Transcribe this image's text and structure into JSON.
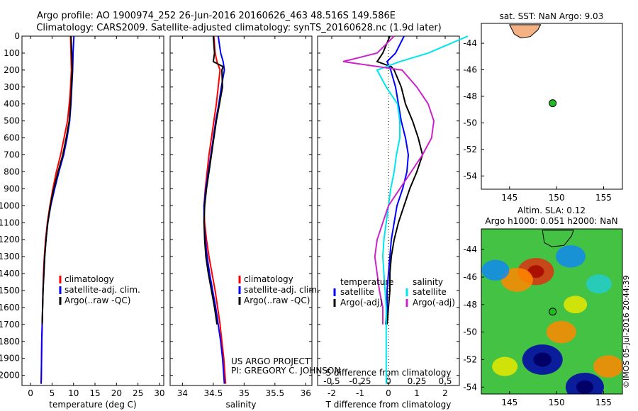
{
  "figure": {
    "title_line1": "Argo profile: AO 1900974_252 26-Jun-2016 20160626_463 48.516S 149.586E",
    "title_line2": "Climatology: CARS2009. Satellite-adjusted climatology: synTS_20160628.nc (1.9d later)",
    "stamp": "©IMOS 05-Jul-2016 20:44:39",
    "project_line1": "US ARGO PROJECT",
    "project_line2": "PI: GREGORY C. JOHNSON"
  },
  "colors": {
    "climatology": "#ff0000",
    "satellite": "#0000ff",
    "argo": "#000000",
    "sal_satellite": "#00e5ee",
    "sal_argo": "#cc22cc",
    "land": "#f4b183",
    "float_marker": "#22bb22"
  },
  "chart_data": [
    {
      "type": "line",
      "xlabel": "temperature (deg C)",
      "ylabel": "",
      "xlim": [
        -2,
        31
      ],
      "ylim": [
        2060,
        0
      ],
      "xticks": [
        "0",
        "5",
        "10",
        "15",
        "20",
        "25",
        "30"
      ],
      "yticks": [
        "0",
        "100",
        "200",
        "300",
        "400",
        "500",
        "600",
        "700",
        "800",
        "900",
        "1000",
        "1100",
        "1200",
        "1300",
        "1400",
        "1500",
        "1600",
        "1700",
        "1800",
        "1900",
        "2000"
      ],
      "legend": [
        "climatology",
        "satellite-adj. clim.",
        "Argo(..raw -QC)"
      ],
      "legend_placement": "lower-center",
      "series": [
        {
          "name": "climatology",
          "color_key": "climatology",
          "depth": [
            0,
            100,
            200,
            300,
            400,
            500,
            600,
            700,
            800,
            900,
            1000,
            1100,
            1200,
            1300,
            1400,
            1500,
            1600,
            1700,
            1800,
            1900,
            2000,
            2050
          ],
          "values": [
            9.3,
            9.4,
            9.5,
            9.3,
            9.0,
            8.6,
            7.8,
            7.0,
            6.0,
            5.2,
            4.5,
            3.9,
            3.5,
            3.2,
            3.0,
            2.9,
            2.8,
            2.7,
            2.6,
            2.55,
            2.5,
            2.45
          ]
        },
        {
          "name": "satellite-adj. clim.",
          "color_key": "satellite",
          "depth": [
            0,
            100,
            200,
            300,
            400,
            500,
            600,
            700,
            800,
            900,
            1000,
            1100,
            1200,
            1300,
            1400,
            1500,
            1600,
            1700,
            1800,
            1900,
            2000,
            2050
          ],
          "values": [
            10.1,
            9.9,
            9.8,
            9.6,
            9.4,
            9.1,
            8.5,
            7.7,
            6.6,
            5.6,
            4.7,
            4.0,
            3.6,
            3.3,
            3.1,
            2.9,
            2.8,
            2.7,
            2.6,
            2.55,
            2.5,
            2.45
          ]
        },
        {
          "name": "Argo(..raw -QC)",
          "color_key": "argo",
          "depth": [
            0,
            100,
            200,
            300,
            400,
            500,
            600,
            700,
            800,
            900,
            1000,
            1100,
            1200,
            1300,
            1400,
            1500,
            1600,
            1700
          ],
          "values": [
            9.4,
            9.6,
            9.7,
            9.5,
            9.3,
            9.0,
            8.3,
            7.5,
            6.4,
            5.4,
            4.6,
            4.0,
            3.6,
            3.3,
            3.1,
            2.9,
            2.8,
            2.7
          ]
        }
      ]
    },
    {
      "type": "line",
      "xlabel": "salinity",
      "xlim": [
        33.8,
        36.1
      ],
      "ylim": [
        2060,
        0
      ],
      "xticks": [
        "34",
        "34.5",
        "35",
        "35.5",
        "36"
      ],
      "legend": [
        "climatology",
        "satellite-adj. clim.",
        "Argo(..raw -QC)"
      ],
      "legend_placement": "lower-center",
      "series": [
        {
          "name": "climatology",
          "color_key": "climatology",
          "depth": [
            0,
            100,
            150,
            200,
            300,
            400,
            500,
            600,
            700,
            800,
            900,
            1000,
            1100,
            1200,
            1300,
            1400,
            1500,
            1600,
            1700,
            1800,
            1900,
            2000,
            2050
          ],
          "values": [
            34.51,
            34.53,
            34.56,
            34.61,
            34.58,
            34.55,
            34.51,
            34.47,
            34.43,
            34.4,
            34.37,
            34.35,
            34.36,
            34.39,
            34.43,
            34.48,
            34.53,
            34.57,
            34.61,
            34.64,
            34.67,
            34.69,
            34.7
          ]
        },
        {
          "name": "satellite-adj. clim.",
          "color_key": "satellite",
          "depth": [
            0,
            100,
            150,
            200,
            300,
            400,
            500,
            600,
            700,
            800,
            900,
            1000,
            1100,
            1200,
            1300,
            1400,
            1500,
            1600,
            1700,
            1800,
            1900,
            2000,
            2050
          ],
          "values": [
            34.58,
            34.62,
            34.66,
            34.68,
            34.63,
            34.59,
            34.54,
            34.5,
            34.46,
            34.42,
            34.38,
            34.35,
            34.35,
            34.37,
            34.4,
            34.44,
            34.49,
            34.54,
            34.58,
            34.62,
            34.65,
            34.67,
            34.68
          ]
        },
        {
          "name": "Argo(..raw -QC)",
          "color_key": "argo",
          "depth": [
            0,
            100,
            150,
            180,
            200,
            300,
            400,
            500,
            600,
            700,
            800,
            900,
            1000,
            1100,
            1200,
            1300,
            1400,
            1500,
            1600,
            1700
          ],
          "values": [
            34.5,
            34.52,
            34.5,
            34.66,
            34.64,
            34.65,
            34.6,
            34.55,
            34.51,
            34.47,
            34.43,
            34.39,
            34.36,
            34.35,
            34.36,
            34.38,
            34.42,
            34.47,
            34.52,
            34.56
          ]
        }
      ]
    },
    {
      "type": "line",
      "xlabel": "T difference from climatology",
      "top_xlabel": "S difference from climatology",
      "xlim": [
        -2.5,
        2.5
      ],
      "ylim": [
        2060,
        0
      ],
      "xticks": [
        "-2",
        "-1",
        "0",
        "1",
        "2"
      ],
      "top_xticks": [
        "-0.5",
        "-0.25",
        "0",
        "0.25",
        "0.5"
      ],
      "legend_titles": [
        "temperature",
        "salinity"
      ],
      "legend": [
        "satellite",
        "Argo(-adj)",
        "satellite",
        "Argo(-adj)"
      ],
      "legend_placement": "lower-center",
      "series": [
        {
          "name": "satellite",
          "group": "temperature",
          "color_key": "satellite",
          "depth": [
            0,
            100,
            150,
            200,
            300,
            400,
            500,
            600,
            700,
            800,
            900,
            1000,
            1100,
            1200,
            1300,
            1400,
            1500,
            1600,
            1700
          ],
          "values": [
            0.55,
            0.25,
            -0.05,
            0.08,
            0.25,
            0.35,
            0.45,
            0.6,
            0.7,
            0.65,
            0.5,
            0.3,
            0.2,
            0.1,
            0.05,
            0.0,
            -0.05,
            -0.05,
            -0.1
          ]
        },
        {
          "name": "Argo(-adj)",
          "group": "temperature",
          "color_key": "argo",
          "depth": [
            0,
            100,
            150,
            180,
            200,
            300,
            400,
            500,
            600,
            700,
            800,
            900,
            1000,
            1100,
            1200,
            1300,
            1400,
            1500,
            1600,
            1700
          ],
          "values": [
            0.05,
            -0.2,
            -0.4,
            0.1,
            0.2,
            0.45,
            0.6,
            0.85,
            1.05,
            1.2,
            1.0,
            0.75,
            0.55,
            0.35,
            0.2,
            0.1,
            0.05,
            0.05,
            0.0,
            -0.05
          ]
        },
        {
          "name": "satellite",
          "group": "salinity",
          "color_key": "sal_satellite",
          "depth": [
            0,
            100,
            150,
            200,
            300,
            400,
            500,
            600,
            700,
            800,
            900,
            1000,
            1100,
            1200,
            1300,
            1400,
            1500,
            1600,
            1700,
            1800,
            1900,
            2000,
            2050
          ],
          "values": [
            0.7,
            0.35,
            0.1,
            -0.1,
            -0.02,
            0.08,
            0.1,
            0.1,
            0.07,
            0.05,
            0.02,
            0.0,
            -0.02,
            -0.04,
            -0.05,
            -0.04,
            -0.03,
            -0.02,
            -0.02,
            -0.02,
            -0.02,
            -0.02,
            -0.02
          ]
        },
        {
          "name": "Argo(-adj)",
          "group": "salinity",
          "color_key": "sal_argo",
          "depth": [
            0,
            100,
            150,
            200,
            300,
            400,
            500,
            600,
            700,
            800,
            900,
            1000,
            1100,
            1200,
            1300,
            1400,
            1500,
            1600,
            1700
          ],
          "values": [
            0.05,
            -0.1,
            -0.4,
            0.12,
            0.25,
            0.35,
            0.4,
            0.38,
            0.3,
            0.2,
            0.1,
            0.0,
            -0.05,
            -0.1,
            -0.12,
            -0.1,
            -0.08,
            -0.05,
            -0.05
          ]
        }
      ]
    },
    {
      "type": "scatter",
      "title": "sat. SST: NaN Argo: 9.03",
      "xlim": [
        142,
        157
      ],
      "ylim": [
        -55,
        -42.5
      ],
      "xticks": [
        "145",
        "150",
        "155"
      ],
      "yticks": [
        "-44",
        "-46",
        "-48",
        "-50",
        "-52",
        "-54"
      ],
      "points": [
        {
          "lon": 149.586,
          "lat": -48.516
        }
      ],
      "land": [
        [
          145.0,
          -42.6
        ],
        [
          145.5,
          -43.3
        ],
        [
          146.2,
          -43.6
        ],
        [
          147.2,
          -43.5
        ],
        [
          148.0,
          -43.0
        ],
        [
          148.3,
          -42.6
        ]
      ]
    },
    {
      "type": "heatmap",
      "title_line1": "Altim. SLA: 0.12",
      "title_line2": "Argo h1000: 0.051 h2000: NaN",
      "xlim": [
        142,
        157
      ],
      "ylim": [
        -54.5,
        -42.5
      ],
      "xticks": [
        "145",
        "150",
        "155"
      ],
      "yticks": [
        "-44",
        "-46",
        "-48",
        "-50",
        "-52",
        "-54"
      ],
      "points": [
        {
          "lon": 149.586,
          "lat": -48.516
        }
      ],
      "blobs": [
        {
          "lon": 147.8,
          "lat": -45.6,
          "value": 0.45
        },
        {
          "lon": 145.8,
          "lat": -46.2,
          "value": 0.35
        },
        {
          "lon": 148.5,
          "lat": -52.0,
          "value": -0.55
        },
        {
          "lon": 153.0,
          "lat": -54.0,
          "value": -0.5
        },
        {
          "lon": 151.5,
          "lat": -44.5,
          "value": -0.3
        },
        {
          "lon": 150.5,
          "lat": -50.0,
          "value": 0.3
        },
        {
          "lon": 155.5,
          "lat": -52.5,
          "value": 0.3
        },
        {
          "lon": 144.5,
          "lat": -52.5,
          "value": 0.2
        },
        {
          "lon": 143.5,
          "lat": -45.5,
          "value": -0.25
        },
        {
          "lon": 154.5,
          "lat": -46.5,
          "value": -0.2
        },
        {
          "lon": 152.0,
          "lat": -48.0,
          "value": 0.15
        }
      ],
      "land": [
        [
          148.5,
          -42.6
        ],
        [
          148.7,
          -43.5
        ],
        [
          149.5,
          -43.8
        ],
        [
          150.8,
          -43.7
        ],
        [
          151.6,
          -43.0
        ],
        [
          151.8,
          -42.6
        ]
      ]
    }
  ]
}
